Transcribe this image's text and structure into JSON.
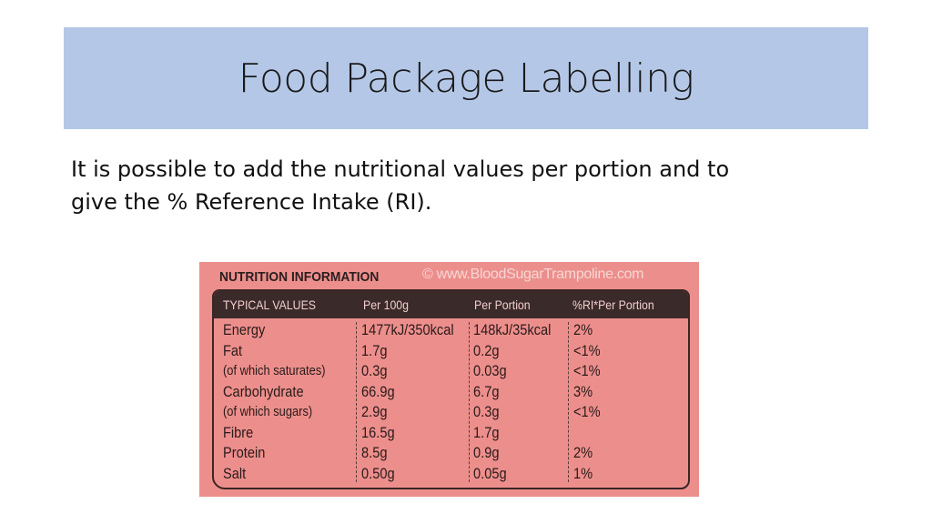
{
  "slide": {
    "title": "Food Package Labelling",
    "body_lines": [
      "It is possible to add the nutritional values per portion and to",
      "give the % Reference Intake (RI)."
    ]
  },
  "nutrition_label": {
    "heading": "NUTRITION INFORMATION",
    "watermark": "© www.BloodSugarTrampoline.com",
    "colors": {
      "background": "#ec8f8c",
      "header": "#3b2a2a"
    },
    "columns": [
      "TYPICAL VALUES",
      "Per 100g",
      "Per Portion",
      "%RI*Per Portion"
    ],
    "rows": [
      {
        "name": "Energy",
        "per100g": "1477kJ/350kcal",
        "perPortion": "148kJ/35kcal",
        "ri": "2%"
      },
      {
        "name": "Fat",
        "per100g": "1.7g",
        "perPortion": "0.2g",
        "ri": "<1%"
      },
      {
        "name": "(of which saturates)",
        "per100g": "0.3g",
        "perPortion": "0.03g",
        "ri": "<1%"
      },
      {
        "name": "Carbohydrate",
        "per100g": "66.9g",
        "perPortion": "6.7g",
        "ri": "3%"
      },
      {
        "name": "(of which sugars)",
        "per100g": "2.9g",
        "perPortion": "0.3g",
        "ri": "<1%"
      },
      {
        "name": "Fibre",
        "per100g": "16.5g",
        "perPortion": "1.7g",
        "ri": ""
      },
      {
        "name": "Protein",
        "per100g": "8.5g",
        "perPortion": "0.9g",
        "ri": "2%"
      },
      {
        "name": "Salt",
        "per100g": "0.50g",
        "perPortion": "0.05g",
        "ri": "1%"
      }
    ]
  }
}
